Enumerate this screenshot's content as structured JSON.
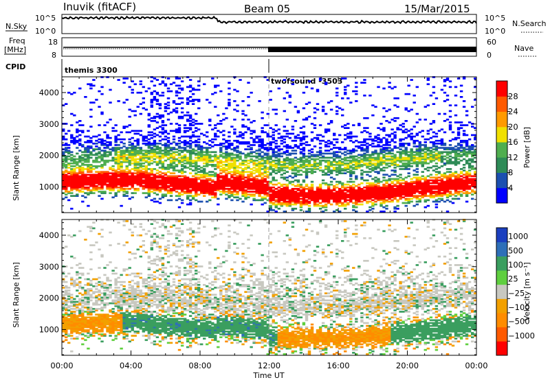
{
  "header": {
    "station": "Inuvik (fitACF)",
    "beam": "Beam 05",
    "date": "15/Mar/2015"
  },
  "strip": {
    "nsky_label": "N.Sky",
    "nsky_top": "10^5",
    "nsky_bottom": "10^0",
    "nsky_right_top": "10^5",
    "nsky_right_bottom": "10^0",
    "nsearch_label": "N.Search",
    "freq_label_1": "Freq",
    "freq_label_2": "[MHz]",
    "freq_top": "18",
    "freq_bottom": "8",
    "nave_label": "Nave",
    "nave_top": "60",
    "nave_bottom": "0",
    "cpid_label": "CPID",
    "cpid_1": "themis 3300",
    "cpid_2": "twofsound -3503"
  },
  "colors": {
    "power_scale": [
      "#0000ff",
      "#1b4fb0",
      "#2e8b57",
      "#4fae4f",
      "#f0e000",
      "#ff9a00",
      "#ff5a00",
      "#ff0000"
    ],
    "velocity_scale": [
      "#ff0000",
      "#ff5a00",
      "#ff8c00",
      "#f2a000",
      "#c8c8c0",
      "#5fcf3f",
      "#3a9e5f",
      "#2e6fb8",
      "#1b3fbf"
    ]
  },
  "chart_data": [
    {
      "type": "heatmap",
      "name": "power",
      "ylabel": "Slant Range [km]",
      "xlabel": "Time UT",
      "x_ticks": [
        "00:00",
        "04:00",
        "08:00",
        "12:00",
        "16:00",
        "20:00",
        "00:00"
      ],
      "y_ticks": [
        1000,
        2000,
        3000,
        4000
      ],
      "ylim": [
        180,
        4500
      ],
      "xlim_hours": [
        0,
        24
      ],
      "colorbar_label": "Power [dB]",
      "colorbar_ticks": [
        "4",
        "8",
        "12",
        "16",
        "20",
        "24",
        "28"
      ]
    },
    {
      "type": "heatmap",
      "name": "velocity",
      "ylabel": "Slant Range [km]",
      "xlabel": "Time UT",
      "x_ticks": [
        "00:00",
        "04:00",
        "08:00",
        "12:00",
        "16:00",
        "20:00",
        "00:00"
      ],
      "y_ticks": [
        1000,
        2000,
        3000,
        4000
      ],
      "ylim": [
        180,
        4500
      ],
      "xlim_hours": [
        0,
        24
      ],
      "colorbar_label": "Velocity [m s⁻¹]",
      "colorbar_ticks": [
        "1000",
        "500",
        "100",
        "25",
        "−25",
        "−100",
        "−500",
        "−1000"
      ]
    }
  ],
  "axes": {
    "time_label": "Time UT"
  }
}
